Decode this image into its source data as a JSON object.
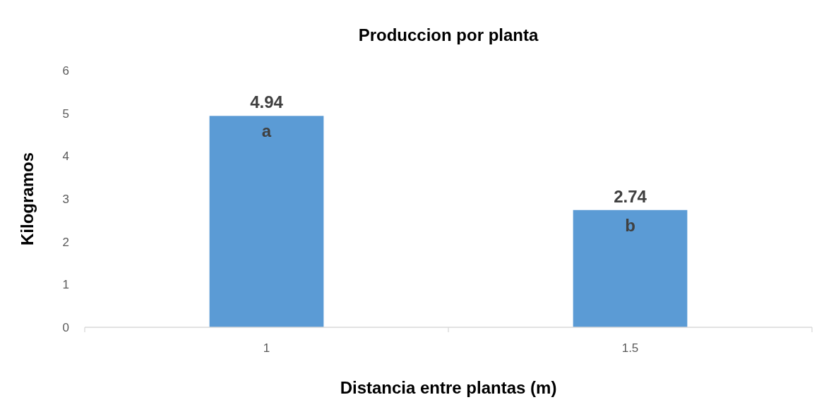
{
  "chart_data": {
    "type": "bar",
    "title": "Produccion por planta",
    "xlabel": "Distancia entre plantas (m)",
    "ylabel": "Kilogramos",
    "categories": [
      "1",
      "1.5"
    ],
    "values": [
      4.94,
      2.74
    ],
    "color": "#5b9bd5",
    "data_labels": true,
    "ylim": [
      0,
      6
    ],
    "yticks": [
      0,
      1,
      2,
      3,
      4,
      5,
      6
    ],
    "grid": false,
    "annotations": [
      {
        "text": "a",
        "x": "1",
        "y": 4.94
      },
      {
        "text": "b",
        "x": "1.5",
        "y": 2.74
      }
    ]
  }
}
